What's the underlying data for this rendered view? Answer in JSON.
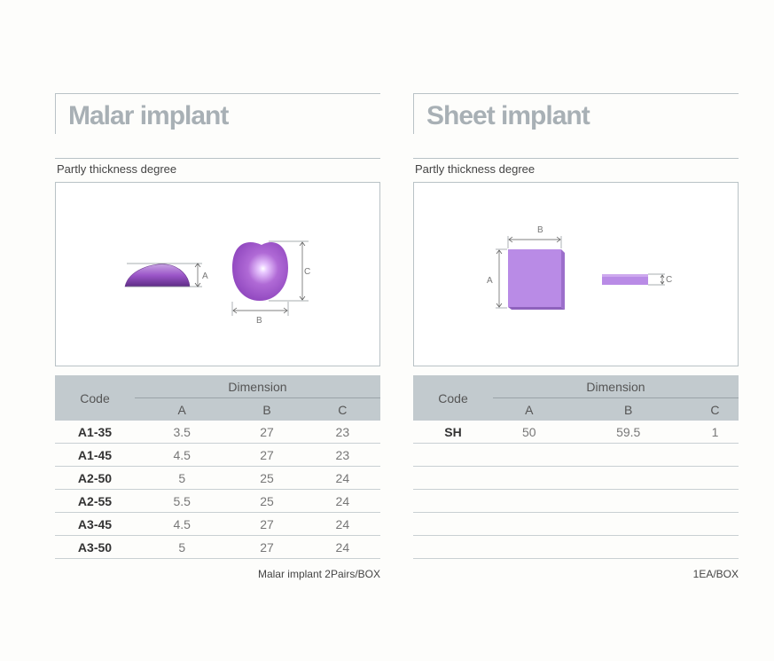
{
  "malar": {
    "title": "Malar implant",
    "subtitle": "Partly thickness degree",
    "labels": {
      "a": "A",
      "b": "B",
      "c": "C"
    },
    "table": {
      "code_header": "Code",
      "dimension_header": "Dimension",
      "columns": [
        "A",
        "B",
        "C"
      ],
      "rows": [
        {
          "code": "A1-35",
          "a": "3.5",
          "b": "27",
          "c": "23"
        },
        {
          "code": "A1-45",
          "a": "4.5",
          "b": "27",
          "c": "23"
        },
        {
          "code": "A2-50",
          "a": "5",
          "b": "25",
          "c": "24"
        },
        {
          "code": "A2-55",
          "a": "5.5",
          "b": "25",
          "c": "24"
        },
        {
          "code": "A3-45",
          "a": "4.5",
          "b": "27",
          "c": "24"
        },
        {
          "code": "A3-50",
          "a": "5",
          "b": "27",
          "c": "24"
        }
      ]
    },
    "footer": "Malar implant  2Pairs/BOX"
  },
  "sheet": {
    "title": "Sheet implant",
    "subtitle": "Partly thickness degree",
    "labels": {
      "a": "A",
      "b": "B",
      "c": "C"
    },
    "table": {
      "code_header": "Code",
      "dimension_header": "Dimension",
      "columns": [
        "A",
        "B",
        "C"
      ],
      "rows": [
        {
          "code": "SH",
          "a": "50",
          "b": "59.5",
          "c": "1"
        },
        {
          "code": "",
          "a": "",
          "b": "",
          "c": ""
        },
        {
          "code": "",
          "a": "",
          "b": "",
          "c": ""
        },
        {
          "code": "",
          "a": "",
          "b": "",
          "c": ""
        },
        {
          "code": "",
          "a": "",
          "b": "",
          "c": ""
        },
        {
          "code": "",
          "a": "",
          "b": "",
          "c": ""
        }
      ]
    },
    "footer": "1EA/BOX"
  },
  "colors": {
    "implant": "#a55fd0",
    "sheet": "#b889e6",
    "header_bg": "#c2cace",
    "rule": "#b9c2c6"
  }
}
